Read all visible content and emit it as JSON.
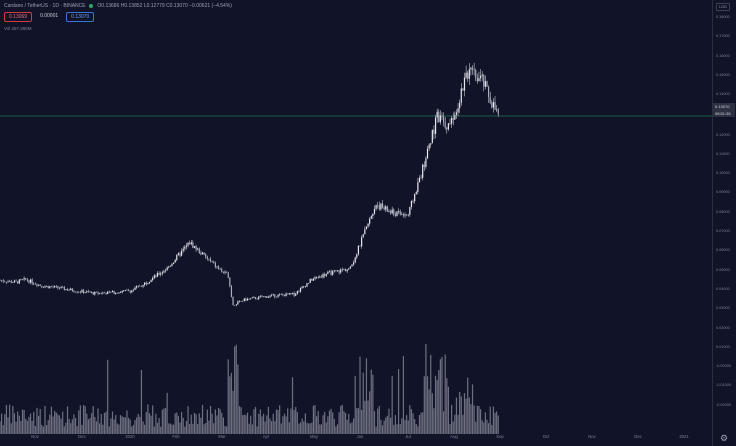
{
  "header": {
    "symbol_line": "Cardano / TetherUS · 1D · BINANCE",
    "ohlc": "O0.13686 H0.13852 L0.12779 C0.13070 −0.00621 (−4.54%)",
    "sell_price": "0.13069",
    "spread": "0.00001",
    "buy_price": "0.13070",
    "volume_label": "Vol 257.265M"
  },
  "axis": {
    "log_badge": "LOG",
    "y_ticks": [
      "0.18000",
      "0.17000",
      "0.16000",
      "0.15000",
      "0.14000",
      "0.12000",
      "0.11000",
      "0.10000",
      "0.09000",
      "0.08000",
      "0.07000",
      "0.06000",
      "0.05000",
      "0.04000",
      "0.03000",
      "0.02000",
      "0.01000",
      "-0.00000",
      "-0.01000",
      "-0.02000"
    ],
    "price_tag": {
      "price": "0.13070",
      "time": "08:51:35"
    },
    "x_ticks": [
      "Nov",
      "Dec",
      "2020",
      "Feb",
      "Mar",
      "Apr",
      "May",
      "Jun",
      "Jul",
      "Aug",
      "Sep",
      "Oct",
      "Nov",
      "Dec",
      "2021"
    ]
  },
  "colors": {
    "background": "#111428",
    "candle": "#e6e8f0",
    "volume": "#6d7080",
    "price_line": "#2fa36b",
    "sell": "#ef6b75",
    "buy": "#6aa2f3"
  },
  "chart_data": {
    "type": "candlestick",
    "x_range": [
      "2019-10-20",
      "2021-01-05"
    ],
    "y_range": [
      -0.025,
      0.19
    ],
    "last_price": 0.1307,
    "close_anchors": [
      [
        "2019-10-20",
        0.0415
      ],
      [
        "2019-10-30",
        0.0405
      ],
      [
        "2019-11-05",
        0.042
      ],
      [
        "2019-11-15",
        0.0385
      ],
      [
        "2019-11-25",
        0.0375
      ],
      [
        "2019-12-05",
        0.036
      ],
      [
        "2019-12-18",
        0.0345
      ],
      [
        "2019-12-30",
        0.035
      ],
      [
        "2020-01-10",
        0.036
      ],
      [
        "2020-01-20",
        0.041
      ],
      [
        "2020-02-01",
        0.048
      ],
      [
        "2020-02-10",
        0.057
      ],
      [
        "2020-02-15",
        0.062
      ],
      [
        "2020-02-25",
        0.054
      ],
      [
        "2020-03-05",
        0.047
      ],
      [
        "2020-03-10",
        0.044
      ],
      [
        "2020-03-13",
        0.028
      ],
      [
        "2020-03-20",
        0.031
      ],
      [
        "2020-04-05",
        0.033
      ],
      [
        "2020-04-20",
        0.034
      ],
      [
        "2020-05-01",
        0.042
      ],
      [
        "2020-05-10",
        0.045
      ],
      [
        "2020-05-25",
        0.048
      ],
      [
        "2020-06-05",
        0.072
      ],
      [
        "2020-06-10",
        0.083
      ],
      [
        "2020-06-20",
        0.078
      ],
      [
        "2020-06-30",
        0.077
      ],
      [
        "2020-07-10",
        0.105
      ],
      [
        "2020-07-18",
        0.13
      ],
      [
        "2020-07-25",
        0.125
      ],
      [
        "2020-08-01",
        0.14
      ],
      [
        "2020-08-05",
        0.155
      ],
      [
        "2020-08-15",
        0.15
      ],
      [
        "2020-08-20",
        0.14
      ],
      [
        "2020-08-25",
        0.1307
      ]
    ],
    "volume_y_range": [
      0,
      1
    ]
  }
}
